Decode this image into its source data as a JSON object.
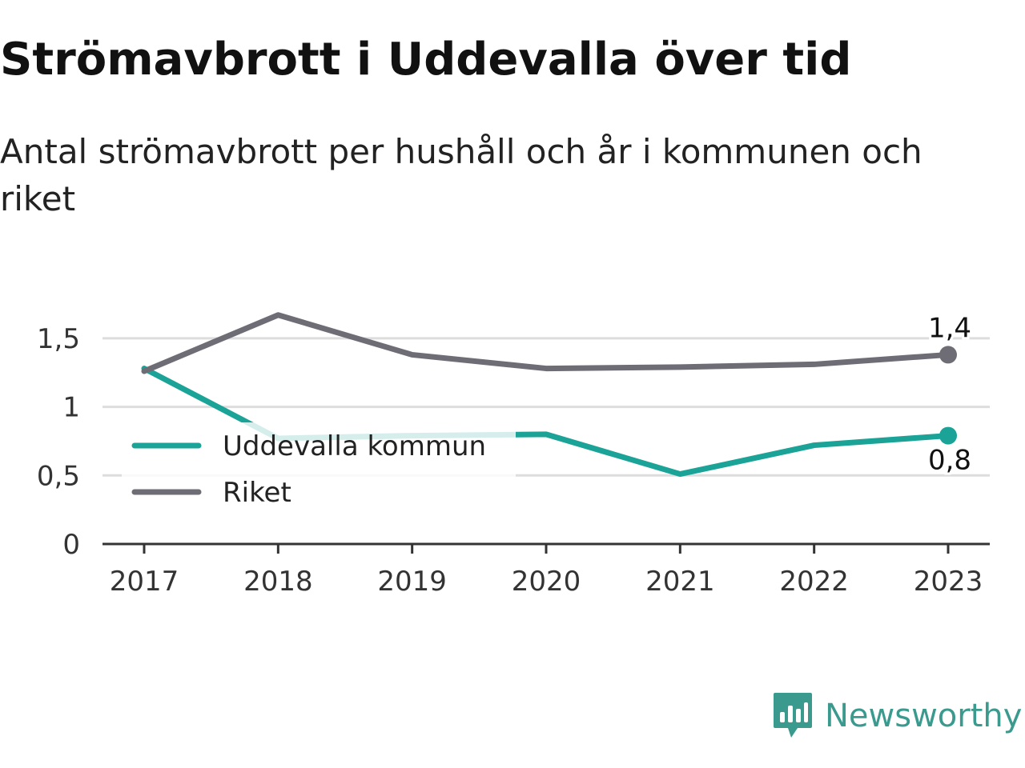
{
  "title": "Strömavbrott i Uddevalla över tid",
  "subtitle": "Antal strömavbrott per hushåll och år i kommunen och riket",
  "brand": {
    "name": "Newsworthy",
    "icon": "newsworthy-logo-icon",
    "color": "#3a9a8e"
  },
  "chart_data": {
    "type": "line",
    "x": [
      "2017",
      "2018",
      "2019",
      "2020",
      "2021",
      "2022",
      "2023"
    ],
    "ylim": [
      0,
      1.75
    ],
    "yticks": [
      {
        "value": 0,
        "label": "0"
      },
      {
        "value": 0.5,
        "label": "0,5"
      },
      {
        "value": 1,
        "label": "1"
      },
      {
        "value": 1.5,
        "label": "1,5"
      }
    ],
    "grid": true,
    "legend_position": "bottom-left",
    "series": [
      {
        "name": "Uddevalla kommun",
        "color": "#1aa396",
        "values": [
          1.28,
          0.77,
          0.79,
          0.8,
          0.51,
          0.72,
          0.79
        ],
        "end_label": "0,8"
      },
      {
        "name": "Riket",
        "color": "#6e6d75",
        "values": [
          1.26,
          1.67,
          1.38,
          1.28,
          1.29,
          1.31,
          1.38
        ],
        "end_label": "1,4"
      }
    ]
  }
}
